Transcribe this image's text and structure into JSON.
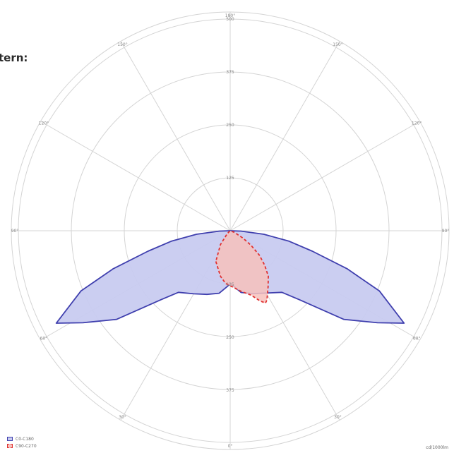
{
  "heading": "tern:",
  "chart_data": {
    "type": "polar",
    "unit_label": "cd/1000lm",
    "radial_ticks": [
      {
        "value": 125,
        "label": "125"
      },
      {
        "value": 250,
        "label": "250"
      },
      {
        "value": 375,
        "label": "375"
      },
      {
        "value": 500,
        "label": "500"
      }
    ],
    "radial_tick_labels_lower": [
      "125",
      "250",
      "375"
    ],
    "rmax": 500,
    "angle_labels": [
      "180°",
      "150°",
      "120°",
      "90°",
      "60°",
      "30°",
      "0°",
      "30°",
      "60°",
      "90°",
      "120°",
      "150°"
    ],
    "series": [
      {
        "name": "C0-C180",
        "fill": "#c8cbf0",
        "stroke": "#3f3fae",
        "dashed": false,
        "points": [
          {
            "angle": -62,
            "value": 465
          },
          {
            "angle": -58,
            "value": 410
          },
          {
            "angle": -52,
            "value": 340
          },
          {
            "angle": -45,
            "value": 230
          },
          {
            "angle": -40,
            "value": 190
          },
          {
            "angle": -30,
            "value": 172
          },
          {
            "angle": -20,
            "value": 160
          },
          {
            "angle": -10,
            "value": 150
          },
          {
            "angle": -3,
            "value": 132
          },
          {
            "angle": 0,
            "value": 125
          },
          {
            "angle": 3,
            "value": 130
          },
          {
            "angle": 10,
            "value": 148
          },
          {
            "angle": 20,
            "value": 158
          },
          {
            "angle": 30,
            "value": 170
          },
          {
            "angle": 40,
            "value": 190
          },
          {
            "angle": 45,
            "value": 230
          },
          {
            "angle": 52,
            "value": 340
          },
          {
            "angle": 58,
            "value": 410
          },
          {
            "angle": 62,
            "value": 465
          },
          {
            "angle": 68,
            "value": 380
          },
          {
            "angle": 72,
            "value": 290
          },
          {
            "angle": 76,
            "value": 200
          },
          {
            "angle": 80,
            "value": 140
          },
          {
            "angle": 84,
            "value": 80
          },
          {
            "angle": 88,
            "value": 25
          },
          {
            "angle": 90,
            "value": 0
          },
          {
            "angle": -90,
            "value": 0
          },
          {
            "angle": -88,
            "value": 25
          },
          {
            "angle": -84,
            "value": 80
          },
          {
            "angle": -80,
            "value": 140
          },
          {
            "angle": -76,
            "value": 200
          },
          {
            "angle": -72,
            "value": 290
          },
          {
            "angle": -68,
            "value": 380
          }
        ]
      },
      {
        "name": "C90-C270",
        "fill": "#f7c1bc",
        "stroke": "#e03030",
        "dashed": true,
        "points": [
          {
            "angle": -25,
            "value": 80
          },
          {
            "angle": -12,
            "value": 110
          },
          {
            "angle": -5,
            "value": 125
          },
          {
            "angle": 0,
            "value": 130
          },
          {
            "angle": 10,
            "value": 145
          },
          {
            "angle": 18,
            "value": 160
          },
          {
            "angle": 23,
            "value": 180
          },
          {
            "angle": 26,
            "value": 190
          },
          {
            "angle": 28,
            "value": 185
          },
          {
            "angle": 34,
            "value": 160
          },
          {
            "angle": 40,
            "value": 140
          },
          {
            "angle": 45,
            "value": 115
          },
          {
            "angle": 50,
            "value": 90
          },
          {
            "angle": 55,
            "value": 60
          },
          {
            "angle": 60,
            "value": 35
          },
          {
            "angle": 70,
            "value": 10
          },
          {
            "angle": 85,
            "value": 0
          },
          {
            "angle": -45,
            "value": 10
          },
          {
            "angle": -35,
            "value": 40
          }
        ]
      }
    ],
    "legend": [
      {
        "label": "C0-C180"
      },
      {
        "label": "C90-C270"
      }
    ],
    "legend_position": "bottom-left",
    "grid": true
  }
}
